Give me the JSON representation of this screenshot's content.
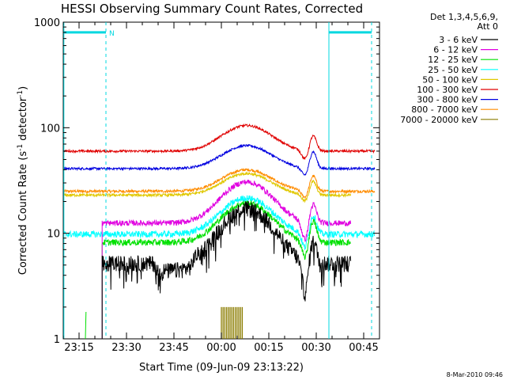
{
  "chart_data": {
    "type": "line",
    "title": "HESSI Observing Summary Count Rates, Corrected",
    "xlabel": "Start Time (09-Jun-09 23:13:22)",
    "ylabel": "Corrected Count Rate (s^-1 detector^-1)",
    "ylabel_parts": {
      "base": "Corrected Count Rate (s",
      "sup1": "-1",
      "mid": " detector",
      "sup2": "-1",
      "end": ")"
    },
    "y_scale": "log",
    "ylim": [
      1,
      1000
    ],
    "xlim_minutes": [
      -5,
      95
    ],
    "x_ticks": [
      {
        "label": "23:15",
        "min": 0
      },
      {
        "label": "23:30",
        "min": 15
      },
      {
        "label": "23:45",
        "min": 30
      },
      {
        "label": "00:00",
        "min": 45
      },
      {
        "label": "00:15",
        "min": 60
      },
      {
        "label": "00:30",
        "min": 75
      },
      {
        "label": "00:45",
        "min": 90
      }
    ],
    "y_ticks": [
      {
        "label": "1",
        "value": 1
      },
      {
        "label": "10",
        "value": 10
      },
      {
        "label": "100",
        "value": 100
      },
      {
        "label": "1000",
        "value": 1000
      }
    ],
    "legend_header": [
      "Det 1,3,4,5,6,9,",
      "Att 0"
    ],
    "legend_position": "top-right",
    "series": [
      {
        "name": "3 - 6 keV",
        "color": "#000000",
        "base": 5.2,
        "flare": 2.3,
        "peak": 0.6,
        "noise": 0.18,
        "spikes": true,
        "start": 7.3,
        "end": 86
      },
      {
        "name": "6 - 12 keV",
        "color": "#e000e0",
        "base": 12.5,
        "flare": 1.45,
        "peak": 0.5,
        "noise": 0.06,
        "spikes": false,
        "start": 7.3,
        "end": 86
      },
      {
        "name": "12 - 25 keV",
        "color": "#00e000",
        "base": 8.2,
        "flare": 1.35,
        "peak": 0.6,
        "noise": 0.07,
        "spikes": false,
        "start": 7.3,
        "end": 86
      },
      {
        "name": "25 - 50 keV",
        "color": "#00ffff",
        "base": 9.8,
        "flare": 1.2,
        "peak": 0.5,
        "noise": 0.07,
        "spikes": false,
        "start": -4.8,
        "end": 93.5
      },
      {
        "name": "50 - 100 keV",
        "color": "#e0c800",
        "base": 23,
        "flare": 0.6,
        "peak": 0.35,
        "noise": 0.03,
        "spikes": false,
        "start": -4.8,
        "end": 86
      },
      {
        "name": "100 - 300 keV",
        "color": "#e00000",
        "base": 60,
        "flare": 0.75,
        "peak": 0.4,
        "noise": 0.025,
        "spikes": false,
        "start": -4.8,
        "end": 93.5
      },
      {
        "name": "300 - 800 keV",
        "color": "#0000e0",
        "base": 41,
        "flare": 0.65,
        "peak": 0.45,
        "noise": 0.025,
        "spikes": false,
        "start": -4.8,
        "end": 93.5
      },
      {
        "name": "800 - 7000 keV",
        "color": "#ff8c00",
        "base": 25,
        "flare": 0.6,
        "peak": 0.4,
        "noise": 0.03,
        "spikes": false,
        "start": -4.8,
        "end": 93.5
      },
      {
        "name": "7000 - 20000 keV",
        "color": "#8b7d00",
        "base": 1,
        "flare": 0,
        "peak": 0,
        "noise": 0,
        "spikes": false,
        "start": -4.8,
        "end": 93.5
      }
    ],
    "saa_markers": [
      {
        "label": "N",
        "start_min": -4.8,
        "end_min": 8.5,
        "level": 800
      },
      {
        "label": "",
        "start_min": 79,
        "end_min": 92.5,
        "level": 800
      }
    ],
    "event_bars_7000": {
      "start_min": 45,
      "end_min": 52,
      "height_value": 2
    }
  },
  "footer": {
    "timestamp": "8-Mar-2010 09:46"
  }
}
